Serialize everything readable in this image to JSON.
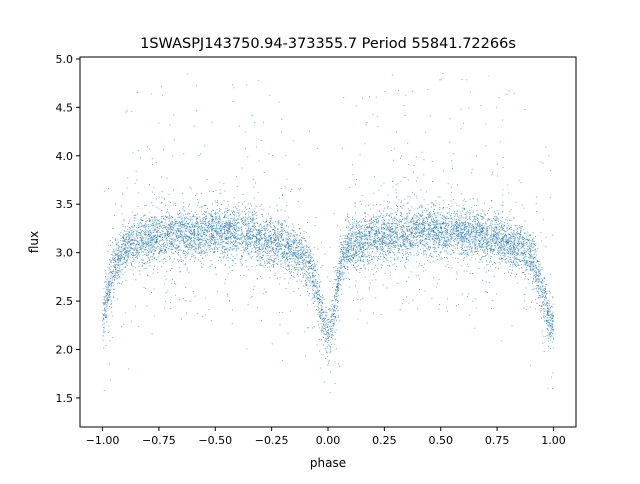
{
  "chart_data": {
    "type": "scatter",
    "title": "1SWASPJ143750.94-373355.7 Period 55841.72266s",
    "xlabel": "phase",
    "ylabel": "flux",
    "xlim": [
      -1.1,
      1.1
    ],
    "ylim": [
      1.2,
      5.02
    ],
    "xticks": [
      -1.0,
      -0.75,
      -0.5,
      -0.25,
      0.0,
      0.25,
      0.5,
      0.75,
      1.0
    ],
    "xtick_labels": [
      "−1.00",
      "−0.75",
      "−0.50",
      "−0.25",
      "0.00",
      "0.25",
      "0.50",
      "0.75",
      "1.00"
    ],
    "yticks": [
      1.5,
      2.0,
      2.5,
      3.0,
      3.5,
      4.0,
      4.5,
      5.0
    ],
    "ytick_labels": [
      "1.5",
      "2.0",
      "2.5",
      "3.0",
      "3.5",
      "4.0",
      "4.5",
      "5.0"
    ],
    "grid": false,
    "marker_color": "#1f77b4",
    "series": [
      {
        "phase": [
          -1.0,
          -0.975,
          -0.95,
          -0.9,
          -0.85,
          -0.75,
          -0.6,
          -0.5,
          -0.4,
          -0.3,
          -0.2,
          -0.12,
          -0.08,
          -0.05,
          -0.03,
          -0.015,
          0.0,
          0.015,
          0.03,
          0.05,
          0.08,
          0.12,
          0.2,
          0.3,
          0.4,
          0.5,
          0.6,
          0.7,
          0.8,
          0.88,
          0.92,
          0.95,
          0.975,
          1.0
        ],
        "flux": [
          2.3,
          2.6,
          2.85,
          3.05,
          3.12,
          3.17,
          3.2,
          3.22,
          3.2,
          3.15,
          3.08,
          2.98,
          2.85,
          2.62,
          2.38,
          2.22,
          2.12,
          2.25,
          2.45,
          2.78,
          3.02,
          3.1,
          3.15,
          3.18,
          3.21,
          3.22,
          3.2,
          3.18,
          3.12,
          3.03,
          2.85,
          2.6,
          2.38,
          2.22
        ]
      }
    ]
  }
}
